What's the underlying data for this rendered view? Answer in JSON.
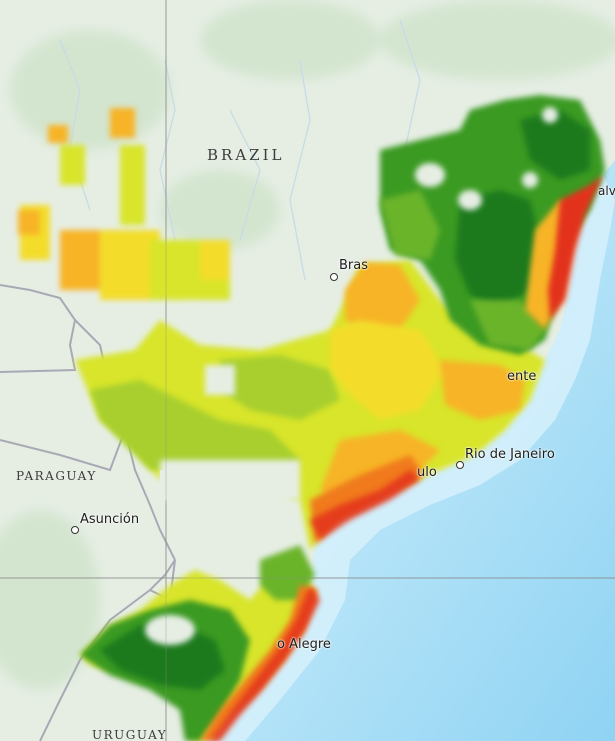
{
  "map": {
    "countries": [
      {
        "id": "brazil",
        "name": "BRAZIL"
      },
      {
        "id": "paraguay",
        "name": "PARAGUAY"
      },
      {
        "id": "uruguay",
        "name": "URUGUAY"
      }
    ],
    "cities": [
      {
        "id": "brasilia",
        "name": "Bras"
      },
      {
        "id": "belo-horizonte",
        "name": "ente"
      },
      {
        "id": "rio-de-janeiro",
        "name": "Rio de Janeiro"
      },
      {
        "id": "sao-paulo",
        "name": "ulo"
      },
      {
        "id": "asuncion",
        "name": "Asunción"
      },
      {
        "id": "porto-alegre",
        "name": "o Alegre"
      },
      {
        "id": "salvador",
        "name": "alv"
      }
    ],
    "colors": {
      "land": "#e6eee4",
      "land_forest": "#d4e4d0",
      "ocean_near": "#d6f0fb",
      "ocean_deep": "#8cd2f2",
      "border": "#a9a9b4",
      "grid_line": "#8c8c8c",
      "river": "#c9dbe6",
      "overlay_scale": [
        "#1f7a1f",
        "#3a9a22",
        "#6ab42a",
        "#a8cf2e",
        "#d8e52a",
        "#f3dd2a",
        "#f7b425",
        "#f07a1e",
        "#e3321a"
      ]
    }
  }
}
